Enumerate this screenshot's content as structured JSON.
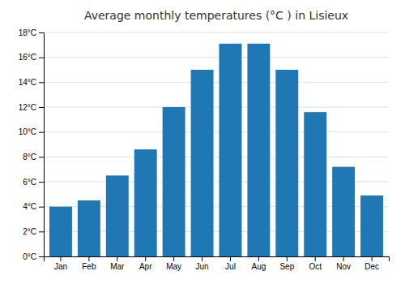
{
  "chart_data": {
    "type": "bar",
    "title": "Average monthly temperatures (°C ) in Lisieux",
    "categories": [
      "Jan",
      "Feb",
      "Mar",
      "Apr",
      "May",
      "Jun",
      "Jul",
      "Aug",
      "Sep",
      "Oct",
      "Nov",
      "Dec"
    ],
    "values": [
      4.0,
      4.5,
      6.5,
      8.6,
      12.0,
      15.0,
      17.1,
      17.1,
      15.0,
      11.6,
      7.2,
      4.9
    ],
    "ylim": [
      0,
      18
    ],
    "yticks": [
      {
        "value": 0,
        "label": "0°C"
      },
      {
        "value": 2,
        "label": "2°C"
      },
      {
        "value": 4,
        "label": "4°C"
      },
      {
        "value": 6,
        "label": "6°C"
      },
      {
        "value": 8,
        "label": "8°C"
      },
      {
        "value": 10,
        "label": "10°C"
      },
      {
        "value": 12,
        "label": "12°C"
      },
      {
        "value": 14,
        "label": "14°C"
      },
      {
        "value": 16,
        "label": "16°C"
      },
      {
        "value": 18,
        "label": "18°C"
      }
    ],
    "grid": true
  }
}
